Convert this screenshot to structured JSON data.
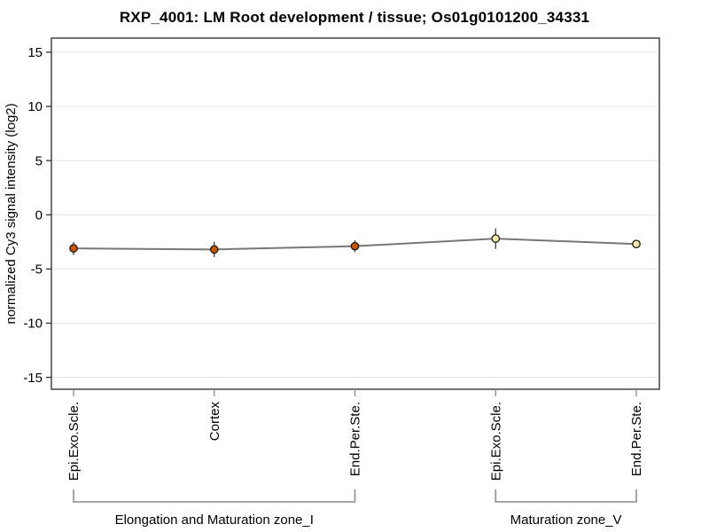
{
  "figure": {
    "title": "RXP_4001: LM Root development / tissue; Os01g0101200_34331"
  },
  "chart_data": {
    "type": "line",
    "title": "RXP_4001: LM Root development / tissue; Os01g0101200_34331",
    "xlabel": "",
    "ylabel": "normalized Cy3 signal intensity (log2)",
    "ylim": [
      -16.1,
      16.3
    ],
    "yticks": [
      15,
      10,
      5,
      0,
      -5,
      -10,
      -15
    ],
    "grid": "horizontal",
    "legend": "none",
    "categories": [
      "Epi.Exo.Scle.",
      "Cortex",
      "End.Per.Ste.",
      "Epi.Exo.Scle.",
      "End.Per.Ste."
    ],
    "series": [
      {
        "name": "normalized Cy3 signal intensity (log2)",
        "values": [
          -3.1,
          -3.2,
          -2.9,
          -2.2,
          -2.7
        ],
        "errors": [
          0.6,
          0.7,
          0.55,
          0.95,
          0.15
        ],
        "point_fills": [
          "#cc5500",
          "#cc5500",
          "#cc5500",
          "#eee8aa",
          "#eee8aa"
        ]
      }
    ],
    "groups": [
      {
        "label": "Elongation and Maturation zone_I",
        "start_index": 0,
        "end_index": 2
      },
      {
        "label": "Maturation zone_V",
        "start_index": 3,
        "end_index": 4
      }
    ],
    "colors": {
      "line": "#777777",
      "error_bar": "#3a3a3a",
      "point_stroke": "#1a1a1a",
      "grid": "#e6e6e6",
      "axis_box": "#444444",
      "y_tick": "#333333",
      "x_tick": "#888888",
      "bracket": "#999999",
      "text": "#000000",
      "background": "#ffffff"
    }
  }
}
